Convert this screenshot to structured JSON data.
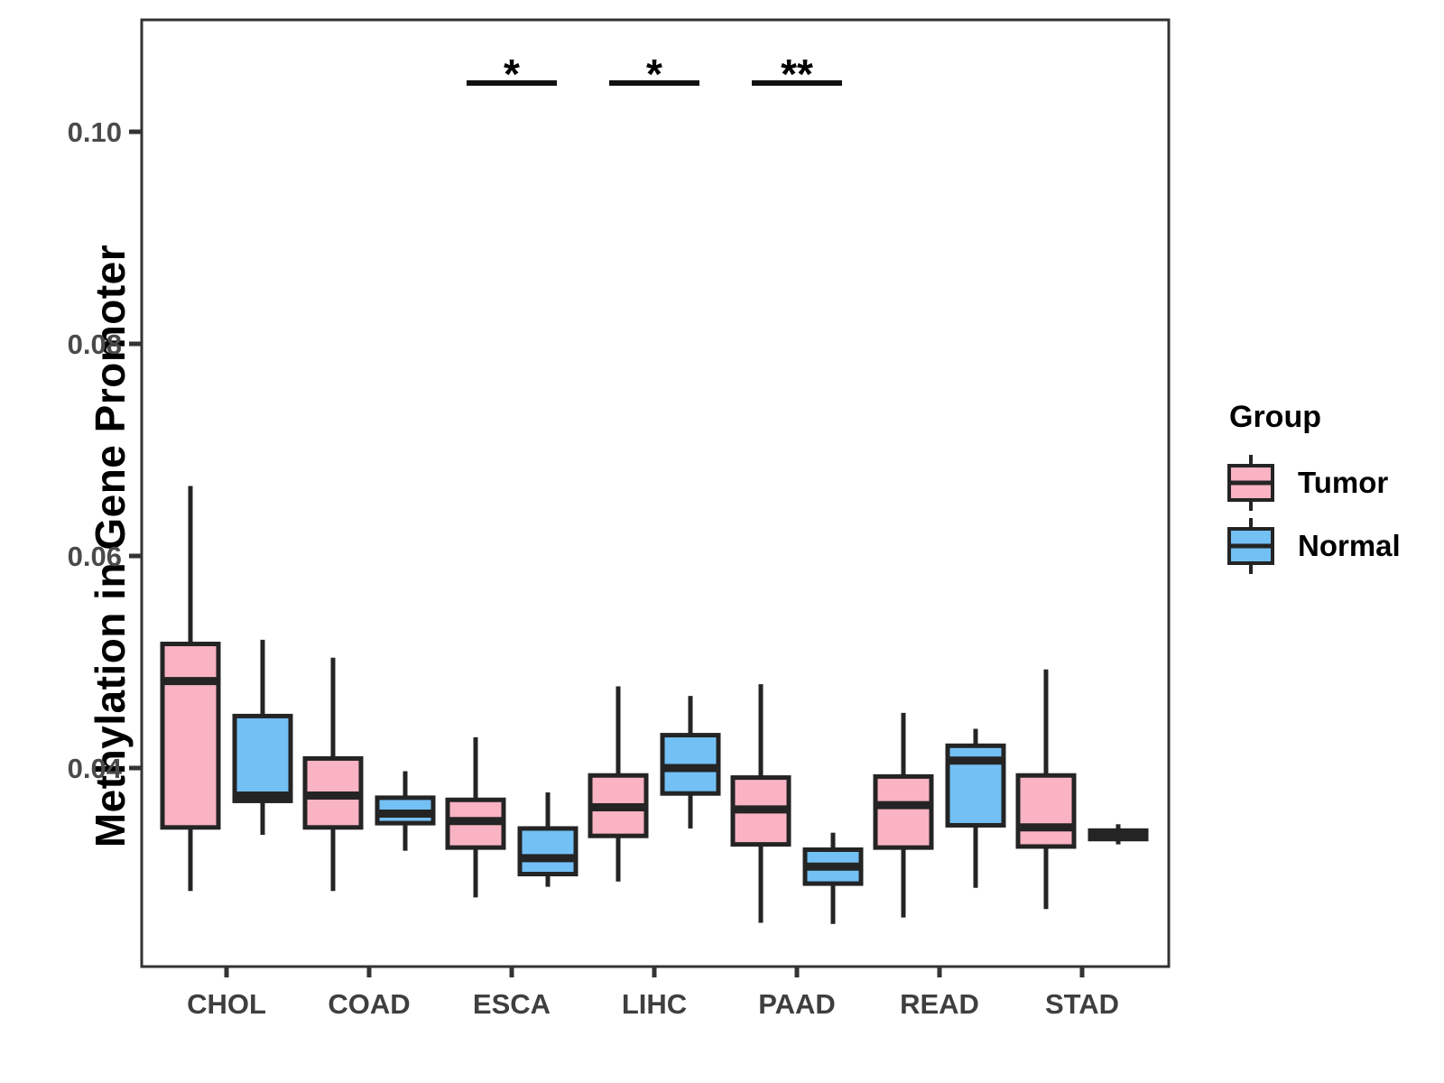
{
  "figure": {
    "background": "#ffffff",
    "panel_border_color": "#333333",
    "box_border_color": "#242424",
    "axis_text_color": "#4a4a4a"
  },
  "legend": {
    "title": "Group",
    "items": [
      {
        "label": "Tumor",
        "color": "#F9B3C2"
      },
      {
        "label": "Normal",
        "color": "#73C0F5"
      }
    ]
  },
  "chart_data": {
    "type": "grouped_boxplot",
    "title": "",
    "xlabel": "",
    "ylabel": "Methylation in Gene Promoter",
    "categories": [
      "CHOL",
      "COAD",
      "ESCA",
      "LIHC",
      "PAAD",
      "READ",
      "STAD"
    ],
    "groups": [
      "Tumor",
      "Normal"
    ],
    "ylim": [
      0.0213,
      0.1106
    ],
    "yticks": [
      "0.04",
      "0.06",
      "0.08",
      "0.10"
    ],
    "ytick_values": [
      0.04,
      0.06,
      0.08,
      0.1
    ],
    "grid": false,
    "legend_position": "right",
    "series": [
      {
        "name": "Tumor",
        "color": "#F9B3C2",
        "stats_order": [
          "whisker_low",
          "q1",
          "median",
          "q3",
          "whisker_high"
        ],
        "stats": [
          [
            0.0284,
            0.0344,
            0.0482,
            0.0517,
            0.0666
          ],
          [
            0.0284,
            0.0344,
            0.0374,
            0.0409,
            0.0504
          ],
          [
            0.0278,
            0.0325,
            0.035,
            0.037,
            0.0429
          ],
          [
            0.0293,
            0.0336,
            0.0363,
            0.0393,
            0.0477
          ],
          [
            0.0254,
            0.0328,
            0.0361,
            0.0391,
            0.0479
          ],
          [
            0.0259,
            0.0325,
            0.0365,
            0.0392,
            0.0452
          ],
          [
            0.0267,
            0.0326,
            0.0344,
            0.0393,
            0.0493
          ]
        ]
      },
      {
        "name": "Normal",
        "color": "#73C0F5",
        "stats_order": [
          "whisker_low",
          "q1",
          "median",
          "q3",
          "whisker_high"
        ],
        "stats": [
          [
            0.0337,
            0.0369,
            0.0374,
            0.0449,
            0.0521
          ],
          [
            0.0322,
            0.0348,
            0.0357,
            0.0372,
            0.0397
          ],
          [
            0.0288,
            0.03,
            0.0315,
            0.0343,
            0.0377
          ],
          [
            0.0343,
            0.0376,
            0.04,
            0.0431,
            0.0468
          ],
          [
            0.0253,
            0.0291,
            0.0307,
            0.0323,
            0.0339
          ],
          [
            0.0287,
            0.0346,
            0.0407,
            0.0421,
            0.0437
          ],
          [
            0.0328,
            0.0333,
            0.0337,
            0.0341,
            0.0347
          ]
        ]
      }
    ],
    "annotations": [
      {
        "category": "ESCA",
        "label": "*"
      },
      {
        "category": "LIHC",
        "label": "*"
      },
      {
        "category": "PAAD",
        "label": "**"
      }
    ]
  }
}
